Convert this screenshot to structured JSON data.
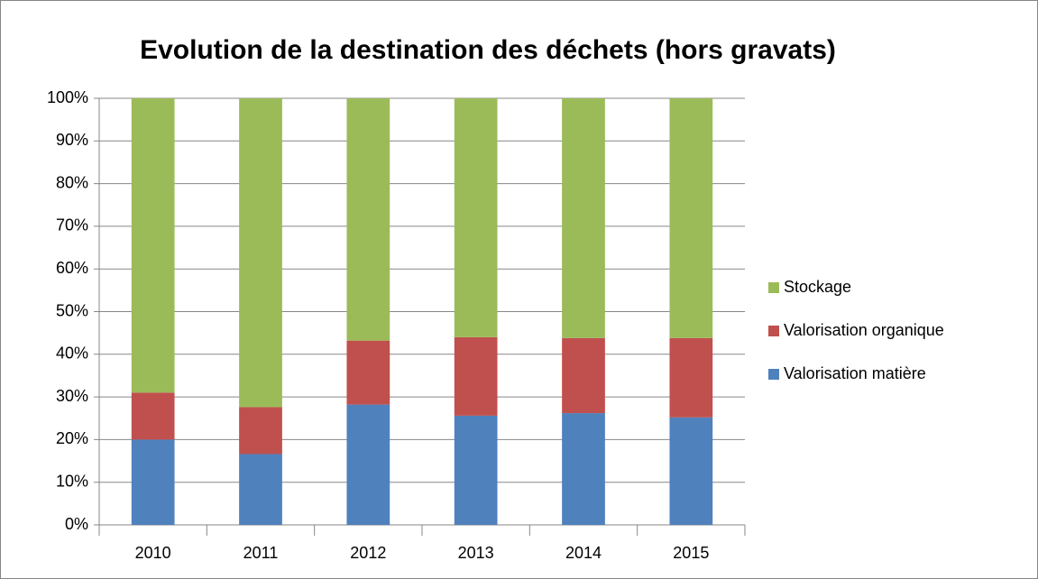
{
  "chart_data": {
    "type": "stacked_bar",
    "title": "Evolution de la destination des déchets (hors gravats)",
    "categories": [
      "2010",
      "2011",
      "2012",
      "2013",
      "2014",
      "2015"
    ],
    "series": [
      {
        "name": "Valorisation matière",
        "color": "#4f81bd",
        "values": [
          20,
          16.6,
          28.2,
          25.6,
          26.2,
          25.2
        ]
      },
      {
        "name": "Valorisation organique",
        "color": "#c0504d",
        "values": [
          11,
          11,
          15,
          18.4,
          17.6,
          18.6
        ]
      },
      {
        "name": "Stockage",
        "color": "#9bbb59",
        "values": [
          69,
          72.4,
          56.8,
          56,
          56.2,
          56.2
        ]
      }
    ],
    "ylim": [
      0,
      100
    ],
    "yticks": [
      {
        "value": 0,
        "label": "0%"
      },
      {
        "value": 10,
        "label": "10%"
      },
      {
        "value": 20,
        "label": "20%"
      },
      {
        "value": 30,
        "label": "30%"
      },
      {
        "value": 40,
        "label": "40%"
      },
      {
        "value": 50,
        "label": "50%"
      },
      {
        "value": 60,
        "label": "60%"
      },
      {
        "value": 70,
        "label": "70%"
      },
      {
        "value": 80,
        "label": "80%"
      },
      {
        "value": 90,
        "label": "90%"
      },
      {
        "value": 100,
        "label": "100%"
      }
    ],
    "grid": true,
    "legend": "right"
  }
}
